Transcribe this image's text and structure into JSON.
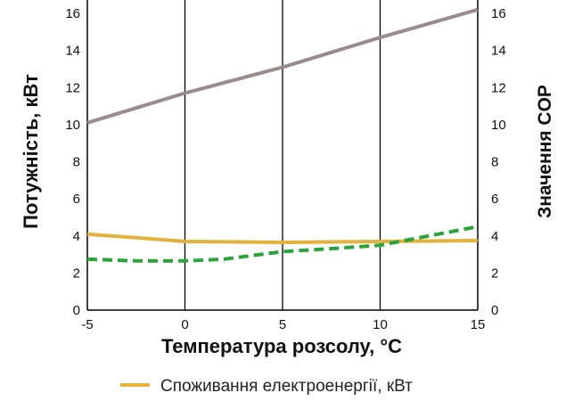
{
  "chart_data": {
    "type": "line",
    "xlabel": "Температура розсолу, °C",
    "ylabel_left": "Потужність, кВт",
    "ylabel_right": "Значення COP",
    "xlim": [
      -5,
      15
    ],
    "ylim_left": [
      0,
      16
    ],
    "ylim_right": [
      0,
      16
    ],
    "x_ticks": [
      -5,
      0,
      5,
      10,
      15
    ],
    "y_ticks_left": [
      0,
      2,
      4,
      6,
      8,
      10,
      12,
      14,
      16
    ],
    "y_ticks_right": [
      0,
      2,
      4,
      6,
      8,
      10,
      12,
      14,
      16
    ],
    "grid": "vertical",
    "legend_position": "bottom",
    "series": [
      {
        "name": "",
        "color": "#9a8b8f",
        "style": "solid",
        "axis": "left",
        "x": [
          -5,
          0,
          5,
          10,
          15
        ],
        "y": [
          10.1,
          11.7,
          13.1,
          14.7,
          16.2
        ]
      },
      {
        "name": "Споживання електроенергії, кВт",
        "color": "#e3b23c",
        "style": "solid",
        "axis": "left",
        "x": [
          -5,
          -2.5,
          0,
          5,
          10,
          15
        ],
        "y": [
          4.1,
          3.9,
          3.7,
          3.65,
          3.7,
          3.75
        ]
      },
      {
        "name": "",
        "color": "#2aa33c",
        "style": "dashed",
        "axis": "right",
        "x": [
          -5,
          -2.5,
          0,
          2,
          5,
          8,
          10,
          12,
          15
        ],
        "y": [
          2.75,
          2.65,
          2.65,
          2.75,
          3.15,
          3.35,
          3.5,
          3.9,
          4.5
        ]
      }
    ]
  }
}
